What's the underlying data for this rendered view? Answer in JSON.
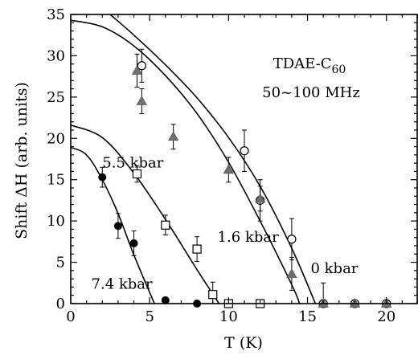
{
  "chart_data": {
    "type": "scatter",
    "xlabel": "T  (K)",
    "ylabel": "Shift ΔH  (arb. units)",
    "xlim": [
      0,
      22
    ],
    "ylim": [
      0,
      35
    ],
    "xticks": [
      0,
      5,
      10,
      15,
      20
    ],
    "yticks": [
      0,
      5,
      10,
      15,
      20,
      25,
      30,
      35
    ],
    "grid": false,
    "annotations": {
      "sample_name": "TDAE-C",
      "sample_subscript": "60",
      "frequency": "50~100 MHz"
    },
    "series": [
      {
        "name": "0 kbar",
        "marker": "open-circle",
        "points": [
          {
            "x": 4.5,
            "y": 28.8,
            "err": 2.0
          },
          {
            "x": 11.0,
            "y": 18.5,
            "err": 2.5
          },
          {
            "x": 12.0,
            "y": 12.5,
            "err": 2.5
          },
          {
            "x": 14.0,
            "y": 7.8,
            "err": 2.5
          },
          {
            "x": 16.0,
            "y": 0.0,
            "err": 2.5
          },
          {
            "x": 18.0,
            "y": 0.0,
            "err": 0.0
          },
          {
            "x": 20.0,
            "y": 0.0,
            "err": 0.0
          }
        ],
        "fit": [
          [
            2.5,
            35.0
          ],
          [
            4.0,
            32.5
          ],
          [
            6.0,
            28.9
          ],
          [
            8.0,
            24.9
          ],
          [
            10.0,
            20.1
          ],
          [
            12.0,
            14.2
          ],
          [
            14.0,
            6.7
          ],
          [
            15.5,
            0.0
          ]
        ]
      },
      {
        "name": "1.6 kbar",
        "marker": "filled-triangle",
        "points": [
          {
            "x": 4.2,
            "y": 28.2,
            "err": 2.0
          },
          {
            "x": 4.5,
            "y": 24.5,
            "err": 1.5
          },
          {
            "x": 6.5,
            "y": 20.2,
            "err": 1.5
          },
          {
            "x": 10.0,
            "y": 16.2,
            "err": 1.5
          },
          {
            "x": 12.0,
            "y": 12.7,
            "err": 1.5
          },
          {
            "x": 14.0,
            "y": 3.6,
            "err": 2.0
          },
          {
            "x": 16.0,
            "y": 0.0,
            "err": 0.0
          },
          {
            "x": 18.0,
            "y": 0.0,
            "err": 0.0
          },
          {
            "x": 20.0,
            "y": 0.0,
            "err": 0.0
          }
        ],
        "fit": [
          [
            0.0,
            34.3
          ],
          [
            2.0,
            33.5
          ],
          [
            4.0,
            31.2
          ],
          [
            6.0,
            27.6
          ],
          [
            8.0,
            23.0
          ],
          [
            10.0,
            17.1
          ],
          [
            12.0,
            10.0
          ],
          [
            14.0,
            2.3
          ],
          [
            14.5,
            0.0
          ]
        ]
      },
      {
        "name": "5.5 kbar",
        "marker": "open-square",
        "points": [
          {
            "x": 4.2,
            "y": 15.7,
            "err": 1.0
          },
          {
            "x": 6.0,
            "y": 9.5,
            "err": 1.2
          },
          {
            "x": 8.0,
            "y": 6.6,
            "err": 1.5
          },
          {
            "x": 9.0,
            "y": 1.1,
            "err": 1.5
          },
          {
            "x": 10.0,
            "y": 0.0,
            "err": 0.0
          },
          {
            "x": 12.0,
            "y": 0.0,
            "err": 0.0
          }
        ],
        "fit": [
          [
            0.0,
            21.6
          ],
          [
            2.0,
            20.1
          ],
          [
            4.0,
            15.8
          ],
          [
            6.0,
            10.2
          ],
          [
            8.0,
            4.1
          ],
          [
            9.4,
            0.0
          ]
        ]
      },
      {
        "name": "7.4 kbar",
        "marker": "filled-circle",
        "points": [
          {
            "x": 2.0,
            "y": 15.3,
            "err": 1.2
          },
          {
            "x": 3.0,
            "y": 9.4,
            "err": 1.5
          },
          {
            "x": 4.0,
            "y": 7.3,
            "err": 1.5
          },
          {
            "x": 6.0,
            "y": 0.4,
            "err": 0.0
          },
          {
            "x": 8.0,
            "y": 0.0,
            "err": 0.0
          }
        ],
        "fit": [
          [
            0.0,
            18.9
          ],
          [
            1.0,
            18.0
          ],
          [
            2.0,
            15.0
          ],
          [
            3.0,
            10.9
          ],
          [
            4.0,
            5.9
          ],
          [
            5.3,
            0.0
          ]
        ]
      }
    ],
    "series_labels": [
      {
        "text": "0 kbar",
        "x": 15.2,
        "y": 3.7
      },
      {
        "text": "1.6 kbar",
        "x": 9.3,
        "y": 7.5
      },
      {
        "text": "5.5 kbar",
        "x": 2.0,
        "y": 16.5
      },
      {
        "text": "7.4 kbar",
        "x": 1.3,
        "y": 1.8
      }
    ]
  }
}
